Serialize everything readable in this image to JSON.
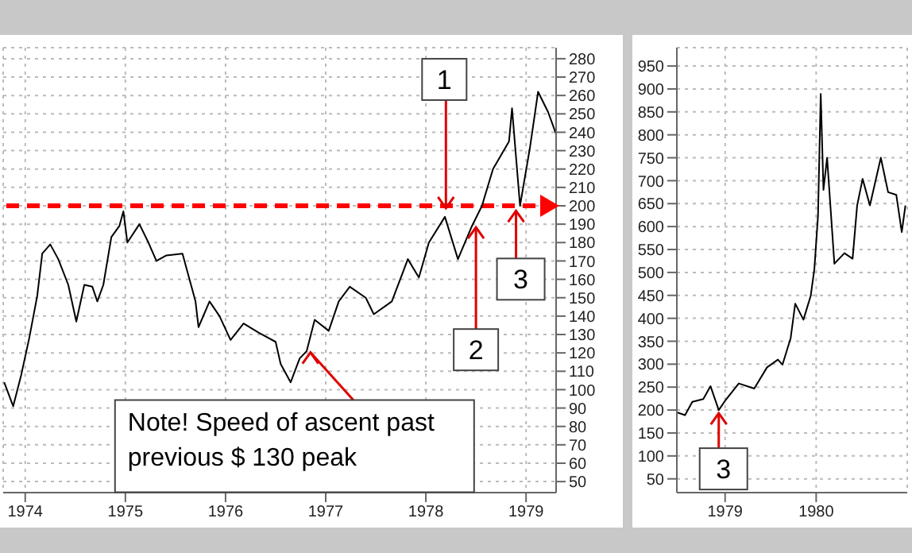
{
  "chart_data": [
    {
      "type": "line",
      "x": [
        1973.79,
        1973.88,
        1973.96,
        1974.04,
        1974.12,
        1974.17,
        1974.25,
        1974.33,
        1974.43,
        1974.51,
        1974.59,
        1974.67,
        1974.72,
        1974.78,
        1974.86,
        1974.94,
        1974.98,
        1975.02,
        1975.14,
        1975.23,
        1975.31,
        1975.41,
        1975.57,
        1975.7,
        1975.73,
        1975.84,
        1975.94,
        1976.05,
        1976.18,
        1976.33,
        1976.5,
        1976.55,
        1976.65,
        1976.74,
        1976.81,
        1976.89,
        1977.03,
        1977.13,
        1977.24,
        1977.4,
        1977.48,
        1977.66,
        1977.82,
        1977.93,
        1978.03,
        1978.19,
        1978.32,
        1978.46,
        1978.56,
        1978.67,
        1978.83,
        1978.86,
        1978.94,
        1979.04,
        1979.12,
        1979.22,
        1979.3
      ],
      "series": [
        {
          "color": "#000000",
          "values": [
            104,
            91,
            108,
            128,
            151,
            174,
            179,
            171,
            157,
            137,
            157,
            156,
            148,
            157,
            183,
            189,
            197,
            180,
            190,
            180,
            170,
            173,
            174,
            148,
            134,
            148,
            140,
            127,
            136,
            131,
            126,
            114,
            104,
            117,
            121,
            138,
            132,
            148,
            156,
            150,
            141,
            148,
            171,
            161,
            180,
            194,
            171,
            189,
            200,
            220,
            235,
            253,
            200,
            232,
            262,
            251,
            239
          ]
        }
      ],
      "xlim": [
        1973.78,
        1979.3
      ],
      "xticks": [
        1974,
        1975,
        1976,
        1977,
        1978,
        1979
      ],
      "ylim": [
        44,
        286
      ],
      "yticks": [
        50,
        60,
        70,
        80,
        90,
        100,
        110,
        120,
        130,
        140,
        150,
        160,
        170,
        180,
        190,
        200,
        210,
        220,
        230,
        240,
        250,
        260,
        270,
        280
      ],
      "grid": true,
      "marker": "none",
      "line_style": "solid",
      "ref_lines": [
        {
          "axis": "y",
          "value": 200,
          "color": "#ff0000",
          "line_style": "dashed"
        }
      ],
      "annotations": [
        {
          "text": "1",
          "x": 1978.2,
          "y": 197
        },
        {
          "text": "2",
          "x": 1978.5,
          "y": 190
        },
        {
          "text": "3",
          "x": 1978.9,
          "y": 199
        },
        {
          "text": "Note! Speed of ascent past previous $ 130 peak",
          "x": 1976.8,
          "y": 122
        }
      ]
    },
    {
      "type": "line",
      "x": [
        1978.47,
        1978.56,
        1978.64,
        1978.76,
        1978.84,
        1978.93,
        1979.01,
        1979.15,
        1979.32,
        1979.46,
        1979.58,
        1979.63,
        1979.72,
        1979.77,
        1979.86,
        1979.94,
        1979.98,
        1980.02,
        1980.05,
        1980.08,
        1980.12,
        1980.2,
        1980.31,
        1980.4,
        1980.45,
        1980.51,
        1980.59,
        1980.71,
        1980.79,
        1980.88,
        1980.94,
        1980.98
      ],
      "series": [
        {
          "color": "#000000",
          "values": [
            195,
            189,
            218,
            224,
            252,
            200,
            223,
            258,
            247,
            293,
            310,
            299,
            357,
            432,
            397,
            449,
            507,
            623,
            889,
            680,
            750,
            519,
            542,
            530,
            646,
            704,
            646,
            750,
            675,
            669,
            588,
            646
          ]
        }
      ],
      "xlim": [
        1978.47,
        1981
      ],
      "xticks": [
        1979,
        1980
      ],
      "ylim": [
        20,
        990
      ],
      "yticks": [
        50,
        100,
        150,
        200,
        250,
        300,
        350,
        400,
        450,
        500,
        550,
        600,
        650,
        700,
        750,
        800,
        850,
        900,
        950
      ],
      "grid": true,
      "marker": "none",
      "line_style": "solid",
      "annotations": [
        {
          "text": "3",
          "x": 1978.93,
          "y": 200
        }
      ]
    }
  ]
}
